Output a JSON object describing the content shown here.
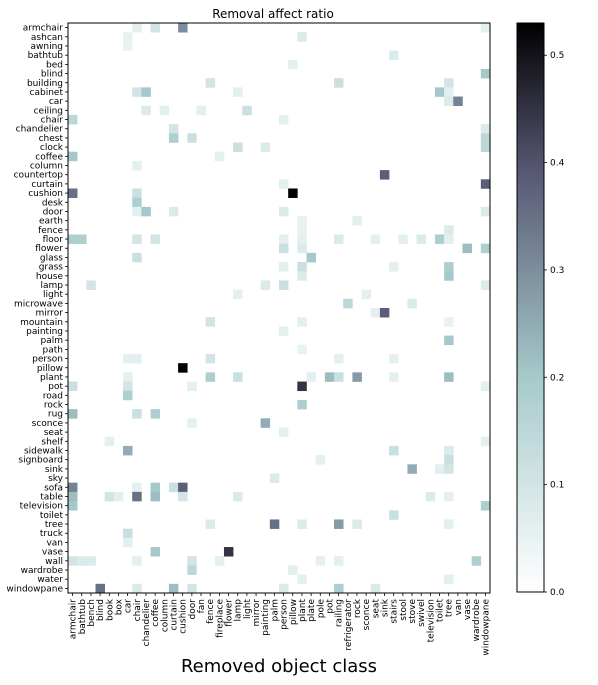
{
  "chart_data": {
    "type": "heatmap",
    "title": "Removal affect ratio",
    "xlabel": "Removed object class",
    "ylabel": "",
    "x_categories": [
      "armchair",
      "bathtub",
      "bench",
      "blind",
      "book",
      "box",
      "car",
      "chair",
      "chandelier",
      "coffee",
      "column",
      "curtain",
      "cushion",
      "door",
      "fan",
      "fence",
      "fireplace",
      "flower",
      "lamp",
      "light",
      "mirror",
      "painting",
      "palm",
      "person",
      "pillow",
      "plant",
      "plate",
      "pole",
      "pot",
      "railing",
      "refrigerator",
      "rock",
      "sconce",
      "seat",
      "sink",
      "stairs",
      "stool",
      "stove",
      "swivel",
      "television",
      "toilet",
      "tree",
      "van",
      "vase",
      "wardrobe",
      "windowpane"
    ],
    "y_categories": [
      "armchair",
      "ashcan",
      "awning",
      "bathtub",
      "bed",
      "blind",
      "building",
      "cabinet",
      "car",
      "ceiling",
      "chair",
      "chandelier",
      "chest",
      "clock",
      "coffee",
      "column",
      "countertop",
      "curtain",
      "cushion",
      "desk",
      "door",
      "earth",
      "fence",
      "floor",
      "flower",
      "glass",
      "grass",
      "house",
      "lamp",
      "light",
      "microwave",
      "mirror",
      "mountain",
      "painting",
      "palm",
      "path",
      "person",
      "pillow",
      "plant",
      "pot",
      "road",
      "rock",
      "rug",
      "sconce",
      "seat",
      "shelf",
      "sidewalk",
      "signboard",
      "sink",
      "sky",
      "sofa",
      "table",
      "television",
      "toilet",
      "tree",
      "truck",
      "van",
      "vase",
      "wall",
      "wardrobe",
      "water",
      "windowpane"
    ],
    "colorbar": {
      "colormap": "bone_r",
      "min": 0.0,
      "max": 0.53,
      "ticks": [
        0.0,
        0.1,
        0.2,
        0.3,
        0.4,
        0.5
      ],
      "tick_labels": [
        "0.0",
        "0.1",
        "0.2",
        "0.3",
        "0.4",
        "0.5"
      ]
    },
    "cells": [
      {
        "row": "armchair",
        "col": "chair",
        "value": 0.06
      },
      {
        "row": "armchair",
        "col": "coffee",
        "value": 0.1
      },
      {
        "row": "armchair",
        "col": "cushion",
        "value": 0.3
      },
      {
        "row": "armchair",
        "col": "windowpane",
        "value": 0.06
      },
      {
        "row": "ashcan",
        "col": "car",
        "value": 0.05
      },
      {
        "row": "ashcan",
        "col": "plant",
        "value": 0.08
      },
      {
        "row": "awning",
        "col": "car",
        "value": 0.05
      },
      {
        "row": "bathtub",
        "col": "stairs",
        "value": 0.08
      },
      {
        "row": "bed",
        "col": "pillow",
        "value": 0.06
      },
      {
        "row": "blind",
        "col": "windowpane",
        "value": 0.2
      },
      {
        "row": "building",
        "col": "fence",
        "value": 0.1
      },
      {
        "row": "building",
        "col": "railing",
        "value": 0.12
      },
      {
        "row": "building",
        "col": "tree",
        "value": 0.1
      },
      {
        "row": "cabinet",
        "col": "chair",
        "value": 0.1
      },
      {
        "row": "cabinet",
        "col": "chandelier",
        "value": 0.2
      },
      {
        "row": "cabinet",
        "col": "lamp",
        "value": 0.06
      },
      {
        "row": "cabinet",
        "col": "toilet",
        "value": 0.2
      },
      {
        "row": "cabinet",
        "col": "tree",
        "value": 0.06
      },
      {
        "row": "car",
        "col": "tree",
        "value": 0.08
      },
      {
        "row": "car",
        "col": "van",
        "value": 0.32
      },
      {
        "row": "ceiling",
        "col": "chandelier",
        "value": 0.08
      },
      {
        "row": "ceiling",
        "col": "column",
        "value": 0.06
      },
      {
        "row": "ceiling",
        "col": "fan",
        "value": 0.06
      },
      {
        "row": "ceiling",
        "col": "light",
        "value": 0.12
      },
      {
        "row": "chair",
        "col": "armchair",
        "value": 0.15
      },
      {
        "row": "chair",
        "col": "person",
        "value": 0.06
      },
      {
        "row": "chandelier",
        "col": "curtain",
        "value": 0.1
      },
      {
        "row": "chandelier",
        "col": "windowpane",
        "value": 0.08
      },
      {
        "row": "chest",
        "col": "curtain",
        "value": 0.18
      },
      {
        "row": "chest",
        "col": "door",
        "value": 0.12
      },
      {
        "row": "chest",
        "col": "windowpane",
        "value": 0.15
      },
      {
        "row": "clock",
        "col": "lamp",
        "value": 0.12
      },
      {
        "row": "clock",
        "col": "painting",
        "value": 0.08
      },
      {
        "row": "clock",
        "col": "windowpane",
        "value": 0.15
      },
      {
        "row": "coffee",
        "col": "armchair",
        "value": 0.2
      },
      {
        "row": "coffee",
        "col": "fireplace",
        "value": 0.06
      },
      {
        "row": "column",
        "col": "chair",
        "value": 0.06
      },
      {
        "row": "countertop",
        "col": "sink",
        "value": 0.38
      },
      {
        "row": "curtain",
        "col": "person",
        "value": 0.06
      },
      {
        "row": "curtain",
        "col": "windowpane",
        "value": 0.38
      },
      {
        "row": "cushion",
        "col": "armchair",
        "value": 0.35
      },
      {
        "row": "cushion",
        "col": "chair",
        "value": 0.12
      },
      {
        "row": "cushion",
        "col": "pillow",
        "value": 0.53
      },
      {
        "row": "desk",
        "col": "chair",
        "value": 0.18
      },
      {
        "row": "door",
        "col": "chair",
        "value": 0.06
      },
      {
        "row": "door",
        "col": "chandelier",
        "value": 0.2
      },
      {
        "row": "door",
        "col": "curtain",
        "value": 0.08
      },
      {
        "row": "door",
        "col": "person",
        "value": 0.08
      },
      {
        "row": "door",
        "col": "windowpane",
        "value": 0.08
      },
      {
        "row": "earth",
        "col": "plant",
        "value": 0.05
      },
      {
        "row": "earth",
        "col": "rock",
        "value": 0.06
      },
      {
        "row": "fence",
        "col": "plant",
        "value": 0.05
      },
      {
        "row": "fence",
        "col": "tree",
        "value": 0.08
      },
      {
        "row": "floor",
        "col": "armchair",
        "value": 0.18
      },
      {
        "row": "floor",
        "col": "bathtub",
        "value": 0.18
      },
      {
        "row": "floor",
        "col": "chair",
        "value": 0.1
      },
      {
        "row": "floor",
        "col": "coffee",
        "value": 0.1
      },
      {
        "row": "floor",
        "col": "person",
        "value": 0.06
      },
      {
        "row": "floor",
        "col": "plant",
        "value": 0.06
      },
      {
        "row": "floor",
        "col": "railing",
        "value": 0.08
      },
      {
        "row": "floor",
        "col": "seat",
        "value": 0.06
      },
      {
        "row": "floor",
        "col": "stool",
        "value": 0.06
      },
      {
        "row": "floor",
        "col": "swivel",
        "value": 0.08
      },
      {
        "row": "floor",
        "col": "toilet",
        "value": 0.18
      },
      {
        "row": "floor",
        "col": "tree",
        "value": 0.06
      },
      {
        "row": "flower",
        "col": "person",
        "value": 0.12
      },
      {
        "row": "flower",
        "col": "plant",
        "value": 0.08
      },
      {
        "row": "flower",
        "col": "vase",
        "value": 0.22
      },
      {
        "row": "flower",
        "col": "windowpane",
        "value": 0.18
      },
      {
        "row": "glass",
        "col": "chair",
        "value": 0.12
      },
      {
        "row": "glass",
        "col": "plate",
        "value": 0.2
      },
      {
        "row": "grass",
        "col": "person",
        "value": 0.06
      },
      {
        "row": "grass",
        "col": "plant",
        "value": 0.12
      },
      {
        "row": "grass",
        "col": "stairs",
        "value": 0.06
      },
      {
        "row": "grass",
        "col": "tree",
        "value": 0.18
      },
      {
        "row": "house",
        "col": "plant",
        "value": 0.08
      },
      {
        "row": "house",
        "col": "tree",
        "value": 0.2
      },
      {
        "row": "lamp",
        "col": "bench",
        "value": 0.1
      },
      {
        "row": "lamp",
        "col": "painting",
        "value": 0.08
      },
      {
        "row": "lamp",
        "col": "person",
        "value": 0.12
      },
      {
        "row": "lamp",
        "col": "windowpane",
        "value": 0.08
      },
      {
        "row": "light",
        "col": "lamp",
        "value": 0.06
      },
      {
        "row": "light",
        "col": "sconce",
        "value": 0.06
      },
      {
        "row": "microwave",
        "col": "refrigerator",
        "value": 0.15
      },
      {
        "row": "microwave",
        "col": "stove",
        "value": 0.08
      },
      {
        "row": "mirror",
        "col": "seat",
        "value": 0.06
      },
      {
        "row": "mirror",
        "col": "sink",
        "value": 0.38
      },
      {
        "row": "mountain",
        "col": "fence",
        "value": 0.1
      },
      {
        "row": "mountain",
        "col": "plant",
        "value": 0.06
      },
      {
        "row": "mountain",
        "col": "tree",
        "value": 0.05
      },
      {
        "row": "painting",
        "col": "person",
        "value": 0.06
      },
      {
        "row": "palm",
        "col": "tree",
        "value": 0.2
      },
      {
        "row": "path",
        "col": "plant",
        "value": 0.05
      },
      {
        "row": "person",
        "col": "car",
        "value": 0.06
      },
      {
        "row": "person",
        "col": "chair",
        "value": 0.06
      },
      {
        "row": "person",
        "col": "fence",
        "value": 0.1
      },
      {
        "row": "person",
        "col": "railing",
        "value": 0.06
      },
      {
        "row": "person",
        "col": "stairs",
        "value": 0.06
      },
      {
        "row": "pillow",
        "col": "cushion",
        "value": 0.53
      },
      {
        "row": "plant",
        "col": "car",
        "value": 0.06
      },
      {
        "row": "plant",
        "col": "fence",
        "value": 0.18
      },
      {
        "row": "plant",
        "col": "lamp",
        "value": 0.12
      },
      {
        "row": "plant",
        "col": "plate",
        "value": 0.06
      },
      {
        "row": "plant",
        "col": "pot",
        "value": 0.22
      },
      {
        "row": "plant",
        "col": "railing",
        "value": 0.12
      },
      {
        "row": "plant",
        "col": "rock",
        "value": 0.28
      },
      {
        "row": "plant",
        "col": "stairs",
        "value": 0.06
      },
      {
        "row": "plant",
        "col": "tree",
        "value": 0.22
      },
      {
        "row": "pot",
        "col": "armchair",
        "value": 0.12
      },
      {
        "row": "pot",
        "col": "car",
        "value": 0.1
      },
      {
        "row": "pot",
        "col": "door",
        "value": 0.06
      },
      {
        "row": "pot",
        "col": "plant",
        "value": 0.45
      },
      {
        "row": "pot",
        "col": "windowpane",
        "value": 0.06
      },
      {
        "row": "road",
        "col": "car",
        "value": 0.18
      },
      {
        "row": "rock",
        "col": "plant",
        "value": 0.18
      },
      {
        "row": "rug",
        "col": "armchair",
        "value": 0.22
      },
      {
        "row": "rug",
        "col": "chair",
        "value": 0.12
      },
      {
        "row": "rug",
        "col": "coffee",
        "value": 0.18
      },
      {
        "row": "sconce",
        "col": "door",
        "value": 0.06
      },
      {
        "row": "sconce",
        "col": "painting",
        "value": 0.25
      },
      {
        "row": "seat",
        "col": "person",
        "value": 0.06
      },
      {
        "row": "shelf",
        "col": "book",
        "value": 0.06
      },
      {
        "row": "shelf",
        "col": "windowpane",
        "value": 0.06
      },
      {
        "row": "sidewalk",
        "col": "car",
        "value": 0.25
      },
      {
        "row": "sidewalk",
        "col": "stairs",
        "value": 0.12
      },
      {
        "row": "sidewalk",
        "col": "tree",
        "value": 0.08
      },
      {
        "row": "signboard",
        "col": "pole",
        "value": 0.06
      },
      {
        "row": "signboard",
        "col": "tree",
        "value": 0.12
      },
      {
        "row": "sink",
        "col": "stove",
        "value": 0.25
      },
      {
        "row": "sink",
        "col": "toilet",
        "value": 0.06
      },
      {
        "row": "sink",
        "col": "tree",
        "value": 0.1
      },
      {
        "row": "sky",
        "col": "palm",
        "value": 0.08
      },
      {
        "row": "sofa",
        "col": "armchair",
        "value": 0.32
      },
      {
        "row": "sofa",
        "col": "chair",
        "value": 0.06
      },
      {
        "row": "sofa",
        "col": "coffee",
        "value": 0.2
      },
      {
        "row": "sofa",
        "col": "curtain",
        "value": 0.12
      },
      {
        "row": "sofa",
        "col": "cushion",
        "value": 0.38
      },
      {
        "row": "table",
        "col": "armchair",
        "value": 0.22
      },
      {
        "row": "table",
        "col": "book",
        "value": 0.1
      },
      {
        "row": "table",
        "col": "box",
        "value": 0.06
      },
      {
        "row": "table",
        "col": "chair",
        "value": 0.35
      },
      {
        "row": "table",
        "col": "coffee",
        "value": 0.22
      },
      {
        "row": "table",
        "col": "cushion",
        "value": 0.1
      },
      {
        "row": "table",
        "col": "lamp",
        "value": 0.08
      },
      {
        "row": "table",
        "col": "television",
        "value": 0.08
      },
      {
        "row": "table",
        "col": "tree",
        "value": 0.06
      },
      {
        "row": "television",
        "col": "armchair",
        "value": 0.2
      },
      {
        "row": "television",
        "col": "windowpane",
        "value": 0.18
      },
      {
        "row": "toilet",
        "col": "stairs",
        "value": 0.12
      },
      {
        "row": "tree",
        "col": "fence",
        "value": 0.08
      },
      {
        "row": "tree",
        "col": "palm",
        "value": 0.35
      },
      {
        "row": "tree",
        "col": "plant",
        "value": 0.08
      },
      {
        "row": "tree",
        "col": "railing",
        "value": 0.28
      },
      {
        "row": "tree",
        "col": "rock",
        "value": 0.08
      },
      {
        "row": "tree",
        "col": "tree",
        "value": 0.06
      },
      {
        "row": "truck",
        "col": "car",
        "value": 0.12
      },
      {
        "row": "van",
        "col": "car",
        "value": 0.06
      },
      {
        "row": "vase",
        "col": "coffee",
        "value": 0.2
      },
      {
        "row": "vase",
        "col": "flower",
        "value": 0.45
      },
      {
        "row": "wall",
        "col": "armchair",
        "value": 0.1
      },
      {
        "row": "wall",
        "col": "bathtub",
        "value": 0.08
      },
      {
        "row": "wall",
        "col": "bench",
        "value": 0.08
      },
      {
        "row": "wall",
        "col": "chair",
        "value": 0.06
      },
      {
        "row": "wall",
        "col": "door",
        "value": 0.1
      },
      {
        "row": "wall",
        "col": "fireplace",
        "value": 0.06
      },
      {
        "row": "wall",
        "col": "pole",
        "value": 0.06
      },
      {
        "row": "wall",
        "col": "railing",
        "value": 0.06
      },
      {
        "row": "wall",
        "col": "wardrobe",
        "value": 0.18
      },
      {
        "row": "wardrobe",
        "col": "door",
        "value": 0.15
      },
      {
        "row": "wardrobe",
        "col": "pillow",
        "value": 0.06
      },
      {
        "row": "water",
        "col": "plant",
        "value": 0.06
      },
      {
        "row": "water",
        "col": "tree",
        "value": 0.06
      },
      {
        "row": "windowpane",
        "col": "blind",
        "value": 0.35
      },
      {
        "row": "windowpane",
        "col": "chair",
        "value": 0.08
      },
      {
        "row": "windowpane",
        "col": "curtain",
        "value": 0.22
      },
      {
        "row": "windowpane",
        "col": "door",
        "value": 0.1
      },
      {
        "row": "windowpane",
        "col": "person",
        "value": 0.08
      },
      {
        "row": "windowpane",
        "col": "railing",
        "value": 0.18
      },
      {
        "row": "windowpane",
        "col": "seat",
        "value": 0.08
      }
    ]
  }
}
